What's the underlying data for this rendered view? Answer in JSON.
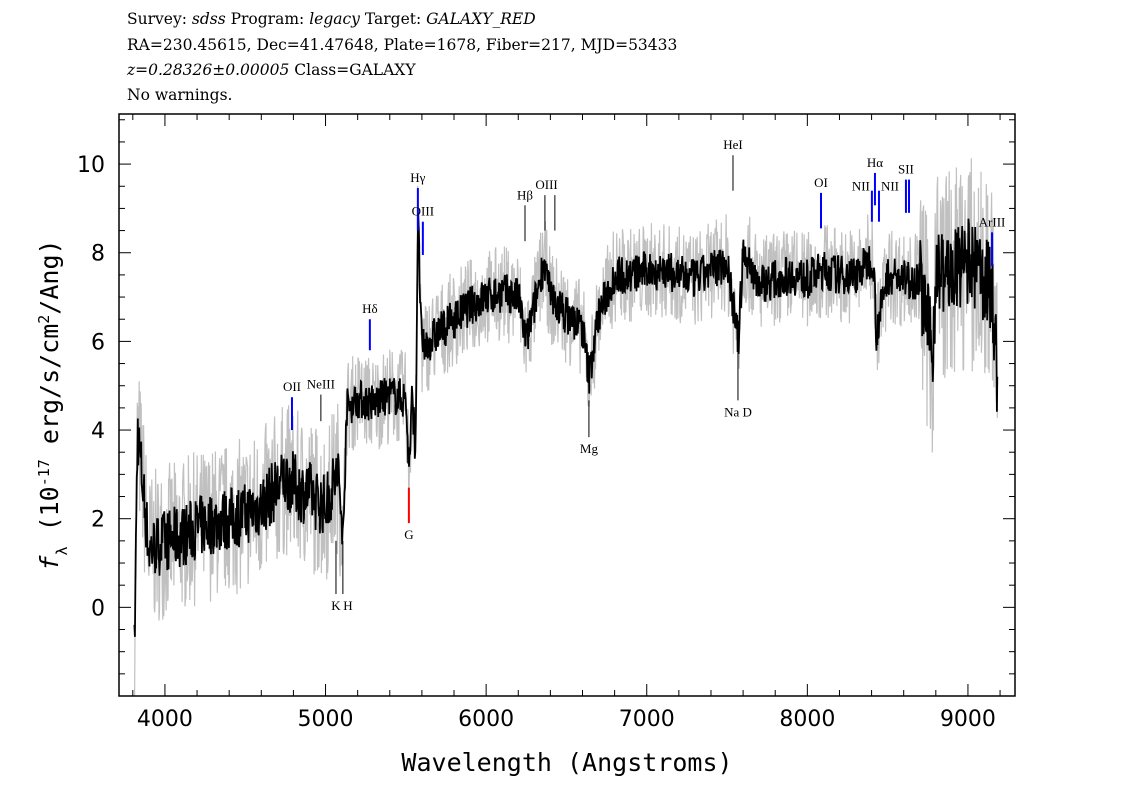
{
  "header": {
    "survey_label": "Survey:",
    "survey": "sdss",
    "program_label": "Program:",
    "program": "legacy",
    "target_label": "Target:",
    "target": "GALAXY_RED",
    "line2": "RA=230.45615, Dec=41.47648, Plate=1678, Fiber=217, MJD=53433",
    "redshift": "z=0.28326±0.00005",
    "class": "Class=GALAXY",
    "warnings": "No warnings."
  },
  "chart_data": {
    "type": "line",
    "xlabel": "Wavelength (Angstroms)",
    "ylabel_f": "f",
    "ylabel_sub": "λ",
    "ylabel_pre": " (10",
    "ylabel_exp": "-17",
    "ylabel_mid": " erg/s/cm",
    "ylabel_exp2": "2",
    "ylabel_post": "/Ang)",
    "xlim": [
      3714,
      9293
    ],
    "ylim": [
      -2.0,
      11.13
    ],
    "xticks": [
      4000,
      5000,
      6000,
      7000,
      8000,
      9000
    ],
    "yticks": [
      0,
      2,
      4,
      6,
      8,
      10
    ],
    "grid": false,
    "colors": {
      "flux": "#000000",
      "error_band": "#c0c0c0",
      "emission": "#0000ff",
      "absorption": "#000000",
      "gband": "#ff0000"
    },
    "series": [
      {
        "x": [
          3810,
          3830,
          3900,
          4000,
          4100,
          4200,
          4300,
          4400,
          4500,
          4600,
          4700,
          4750,
          4800,
          4850,
          4900,
          4950,
          5000,
          5050,
          5080,
          5110,
          5130,
          5200,
          5300,
          5400,
          5500,
          5520,
          5540,
          5560,
          5575,
          5600,
          5650,
          5700,
          5800,
          5900,
          6000,
          6100,
          6200,
          6250,
          6300,
          6360,
          6400,
          6500,
          6600,
          6640,
          6700,
          6800,
          6900,
          7000,
          7100,
          7200,
          7300,
          7400,
          7500,
          7570,
          7600,
          7700,
          7800,
          7900,
          8000,
          8100,
          8200,
          8300,
          8410,
          8430,
          8500,
          8600,
          8700,
          8780,
          8800,
          8900,
          9000,
          9100,
          9150,
          9185
        ],
        "y": [
          -1.0,
          4.0,
          1.3,
          1.5,
          1.6,
          1.8,
          1.9,
          2.0,
          2.1,
          2.3,
          2.7,
          2.9,
          2.8,
          2.6,
          2.6,
          2.4,
          2.3,
          2.8,
          3.0,
          1.5,
          4.5,
          4.7,
          4.6,
          4.8,
          4.7,
          3.1,
          4.8,
          3.5,
          8.8,
          5.8,
          6.0,
          6.2,
          6.5,
          6.8,
          7.0,
          7.1,
          7.0,
          6.0,
          6.8,
          7.8,
          7.0,
          6.6,
          6.3,
          5.2,
          6.6,
          7.5,
          7.5,
          7.6,
          7.6,
          7.5,
          7.4,
          7.6,
          7.8,
          6.0,
          8.0,
          7.3,
          7.4,
          7.5,
          7.4,
          7.6,
          7.5,
          7.5,
          7.9,
          6.2,
          7.5,
          7.4,
          7.4,
          5.7,
          7.6,
          7.5,
          7.8,
          7.4,
          7.2,
          5.0
        ]
      }
    ],
    "lines": [
      {
        "name": "OII",
        "wave": 4791,
        "y": [
          4.0,
          4.74
        ],
        "color": "#0000ff",
        "label_pos": "above"
      },
      {
        "name": "NeIII",
        "wave": 4971,
        "y": [
          4.2,
          4.8
        ],
        "color": "#000000",
        "label_pos": "above"
      },
      {
        "name": "K",
        "wave": 5065,
        "y": [
          0.3,
          1.5
        ],
        "color": "#000000",
        "label_pos": "below"
      },
      {
        "name": "H",
        "wave": 5108,
        "y": [
          0.3,
          1.5
        ],
        "color": "#000000",
        "label_pos": "below"
      },
      {
        "name": "Hδ",
        "wave": 5276,
        "y": [
          5.8,
          6.5
        ],
        "color": "#0000ff",
        "label_pos": "above"
      },
      {
        "name": "G",
        "wave": 5519,
        "y": [
          1.9,
          2.7
        ],
        "color": "#ff0000",
        "label_pos": "below"
      },
      {
        "name": "Hγ",
        "wave": 5575,
        "y": [
          8.5,
          9.46
        ],
        "color": "#0000ff",
        "label_pos": "above"
      },
      {
        "name": "OIII",
        "wave": 5606,
        "y": [
          7.95,
          8.7
        ],
        "color": "#0000ff",
        "label_pos": "above"
      },
      {
        "name": "Hβ",
        "wave": 6242,
        "y": [
          8.26,
          9.07
        ],
        "color": "#000000",
        "label_pos": "above"
      },
      {
        "name": "OIII",
        "wave": 6366,
        "y": [
          8.5,
          9.3
        ],
        "color": "#000000",
        "label_pos": "above"
      },
      {
        "name": "",
        "wave": 6428,
        "y": [
          8.5,
          9.3
        ],
        "color": "#000000",
        "label_pos": "none"
      },
      {
        "name": "Mg",
        "wave": 6640,
        "y": [
          3.84,
          4.67
        ],
        "color": "#000000",
        "label_pos": "below"
      },
      {
        "name": "HeI",
        "wave": 7537,
        "y": [
          9.4,
          10.2
        ],
        "color": "#000000",
        "label_pos": "above"
      },
      {
        "name": "Na D",
        "wave": 7568,
        "y": [
          4.67,
          6.14
        ],
        "color": "#000000",
        "label_pos": "below"
      },
      {
        "name": "OI",
        "wave": 8085,
        "y": [
          8.55,
          9.35
        ],
        "color": "#0000ff",
        "label_pos": "above"
      },
      {
        "name": "NII",
        "wave": 8402,
        "y": [
          8.7,
          9.4
        ],
        "color": "#0000ff",
        "label_pos": "left"
      },
      {
        "name": "Hα",
        "wave": 8421,
        "y": [
          9.07,
          9.8
        ],
        "color": "#0000ff",
        "label_pos": "above"
      },
      {
        "name": "NII",
        "wave": 8446,
        "y": [
          8.7,
          9.4
        ],
        "color": "#0000ff",
        "label_pos": "right"
      },
      {
        "name": "SII",
        "wave": 8614,
        "y": [
          8.9,
          9.65
        ],
        "color": "#0000ff",
        "label_pos": "above"
      },
      {
        "name": "",
        "wave": 8633,
        "y": [
          8.9,
          9.65
        ],
        "color": "#0000ff",
        "label_pos": "none"
      },
      {
        "name": "ArIII",
        "wave": 9150,
        "y": [
          7.7,
          8.46
        ],
        "color": "#0000ff",
        "label_pos": "above"
      }
    ]
  }
}
